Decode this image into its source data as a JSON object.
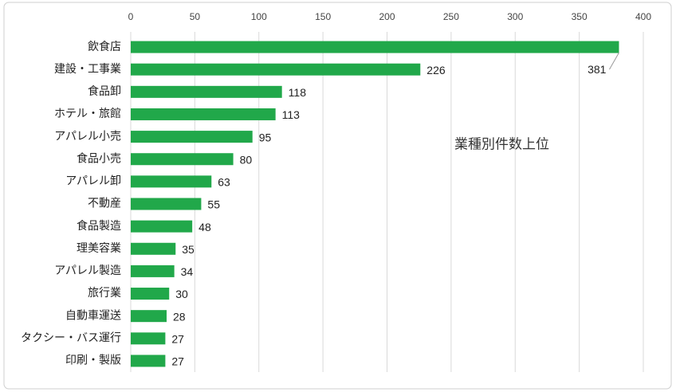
{
  "chart_data": {
    "type": "bar",
    "orientation": "horizontal",
    "annotation": "業種別件数上位",
    "categories": [
      "飲食店",
      "建設・工事業",
      "食品卸",
      "ホテル・旅館",
      "アパレル小売",
      "食品小売",
      "アパレル卸",
      "不動産",
      "食品製造",
      "理美容業",
      "アパレル製造",
      "旅行業",
      "自動車運送",
      "タクシー・バス運行",
      "印刷・製版"
    ],
    "values": [
      381,
      226,
      118,
      113,
      95,
      80,
      63,
      55,
      48,
      35,
      34,
      30,
      28,
      27,
      27
    ],
    "color": "#21a84a",
    "xlim": [
      0,
      400
    ],
    "xticks": [
      0,
      50,
      100,
      150,
      200,
      250,
      300,
      350,
      400
    ],
    "grid": true
  }
}
